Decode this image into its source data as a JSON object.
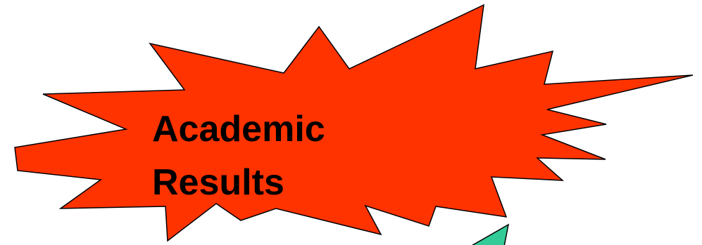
{
  "title": {
    "line1": "Academic",
    "line2": "Results"
  },
  "colors": {
    "burst_fill": "#FF3300",
    "burst_stroke": "#000000",
    "shape_fill": "#33CC99",
    "background": "#FFFFFF"
  },
  "shapes": {
    "main": "explosion-starburst",
    "partial": "teal-starburst-partial"
  }
}
